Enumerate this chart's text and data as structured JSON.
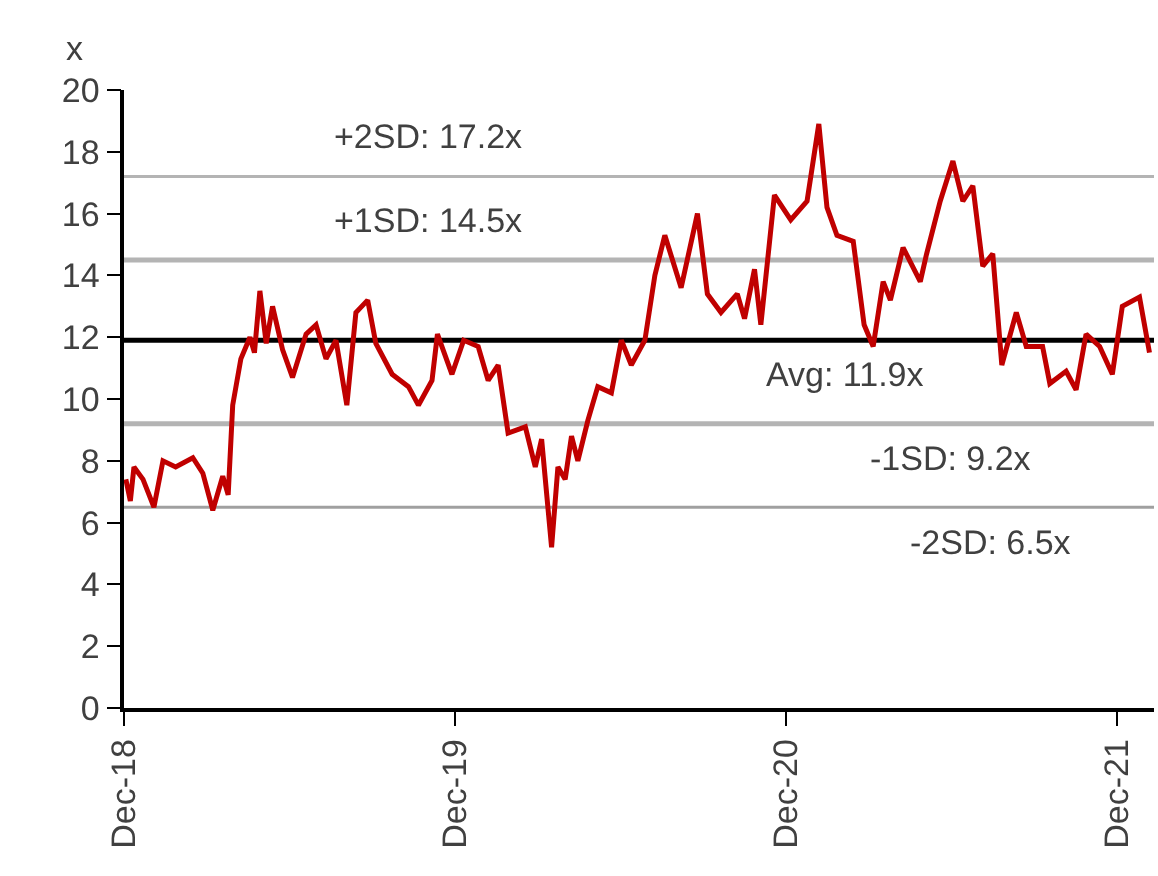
{
  "chart_data": {
    "type": "line",
    "ylabel": "x",
    "x": [
      "2018-12-03",
      "2018-12-08",
      "2018-12-12",
      "2018-12-22",
      "2019-01-03",
      "2019-01-13",
      "2019-01-27",
      "2019-02-15",
      "2019-02-26",
      "2019-03-09",
      "2019-03-20",
      "2019-03-26",
      "2019-03-31",
      "2019-04-09",
      "2019-04-19",
      "2019-04-24",
      "2019-04-30",
      "2019-05-07",
      "2019-05-14",
      "2019-05-25",
      "2019-06-05",
      "2019-06-20",
      "2019-07-01",
      "2019-07-12",
      "2019-07-23",
      "2019-08-04",
      "2019-08-14",
      "2019-08-27",
      "2019-09-05",
      "2019-09-23",
      "2019-10-11",
      "2019-10-22",
      "2019-11-06",
      "2019-11-12",
      "2019-11-28",
      "2019-12-11",
      "2019-12-27",
      "2020-01-07",
      "2020-01-18",
      "2020-01-29",
      "2020-02-17",
      "2020-02-28",
      "2020-03-06",
      "2020-03-17",
      "2020-03-24",
      "2020-04-01",
      "2020-04-08",
      "2020-04-15",
      "2020-04-26",
      "2020-05-07",
      "2020-05-22",
      "2020-06-02",
      "2020-06-13",
      "2020-06-28",
      "2020-07-09",
      "2020-07-20",
      "2020-08-07",
      "2020-08-25",
      "2020-09-05",
      "2020-09-20",
      "2020-10-08",
      "2020-10-16",
      "2020-10-27",
      "2020-11-03",
      "2020-11-18",
      "2020-12-06",
      "2020-12-24",
      "2021-01-06",
      "2021-01-15",
      "2021-01-26",
      "2021-02-13",
      "2021-02-25",
      "2021-03-07",
      "2021-03-18",
      "2021-03-26",
      "2021-04-09",
      "2021-04-28",
      "2021-05-05",
      "2021-05-20",
      "2021-06-03",
      "2021-06-14",
      "2021-06-25",
      "2021-07-06",
      "2021-07-17",
      "2021-07-27",
      "2021-08-12",
      "2021-08-23",
      "2021-09-10",
      "2021-09-18",
      "2021-10-06",
      "2021-10-17",
      "2021-10-28",
      "2021-11-12",
      "2021-11-26",
      "2021-12-07",
      "2021-12-26",
      "2022-01-06"
    ],
    "series": [
      {
        "color": "#c00000",
        "values": [
          7.4,
          6.7,
          7.8,
          7.4,
          6.5,
          8.0,
          7.8,
          8.1,
          7.6,
          6.4,
          7.5,
          6.9,
          9.8,
          11.3,
          12.0,
          11.5,
          13.5,
          11.8,
          13.0,
          11.6,
          10.7,
          12.1,
          12.4,
          11.3,
          11.9,
          9.8,
          12.8,
          13.2,
          11.8,
          10.8,
          10.4,
          9.8,
          10.6,
          12.1,
          10.8,
          11.9,
          11.7,
          10.6,
          11.1,
          8.9,
          9.1,
          7.8,
          8.7,
          5.2,
          7.8,
          7.4,
          8.8,
          8.0,
          9.3,
          10.4,
          10.2,
          11.9,
          11.1,
          11.9,
          14.0,
          15.3,
          13.6,
          16.0,
          13.4,
          12.8,
          13.4,
          12.6,
          14.2,
          12.4,
          16.6,
          15.8,
          16.4,
          18.9,
          16.2,
          15.3,
          15.1,
          12.4,
          11.7,
          13.8,
          13.2,
          14.9,
          13.8,
          14.7,
          16.4,
          17.7,
          16.4,
          16.9,
          14.3,
          14.7,
          11.1,
          12.8,
          11.7,
          11.7,
          10.5,
          10.9,
          10.3,
          12.1,
          11.7,
          10.8,
          13.0,
          13.3,
          11.5
        ]
      }
    ],
    "xlim": [
      "2018-12-01",
      "2022-01-11"
    ],
    "xticks": [
      {
        "value": "2018-12-01",
        "label": "Dec-18"
      },
      {
        "value": "2019-12-01",
        "label": "Dec-19"
      },
      {
        "value": "2020-12-01",
        "label": "Dec-20"
      },
      {
        "value": "2021-12-01",
        "label": "Dec-21"
      }
    ],
    "ylim": [
      0,
      20
    ],
    "yticks": [
      0,
      2,
      4,
      6,
      8,
      10,
      12,
      14,
      16,
      18,
      20
    ],
    "ref_lines": [
      {
        "axis": "y",
        "value": 17.2,
        "label": "+2SD: 17.2x",
        "color": "#b4b4b4"
      },
      {
        "axis": "y",
        "value": 14.5,
        "label": "+1SD: 14.5x",
        "color": "#b4b4b4"
      },
      {
        "axis": "y",
        "value": 11.9,
        "label": "Avg: 11.9x",
        "color": "#000000"
      },
      {
        "axis": "y",
        "value": 9.2,
        "label": "-1SD: 9.2x",
        "color": "#b4b4b4"
      },
      {
        "axis": "y",
        "value": 6.5,
        "label": "-2SD: 6.5x",
        "color": "#a0a0a0"
      }
    ],
    "grid": false,
    "marker": "none",
    "line_style": "solid"
  }
}
